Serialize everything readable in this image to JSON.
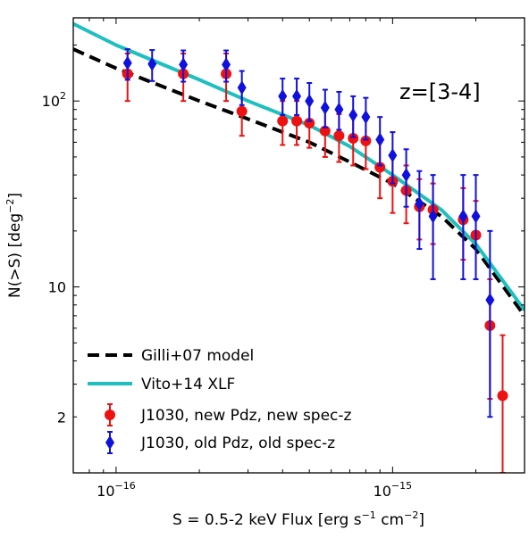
{
  "chart_data": {
    "type": "scatter",
    "xlabel_main": "S = 0.5-2 keV Flux [erg s",
    "xlabel_sup1": "−1",
    "xlabel_mid": " cm",
    "xlabel_sup2": "−2",
    "xlabel_end": "]",
    "ylabel_main": "N(>S) [deg",
    "ylabel_sup": "−2",
    "ylabel_end": "]",
    "x_scale": "log",
    "y_scale": "log",
    "xlim": [
      7e-17,
      3e-15
    ],
    "ylim": [
      1.0,
      280
    ],
    "x_ticks": [
      {
        "value": 1e-16,
        "base": "10",
        "exp": "−16"
      },
      {
        "value": 1e-15,
        "base": "10",
        "exp": "−15"
      }
    ],
    "y_ticks": [
      {
        "value": 100,
        "base": "10",
        "exp": "2"
      },
      {
        "value": 10,
        "label": "10"
      },
      {
        "value": 2,
        "label": "2"
      }
    ],
    "annotation": "z=[3-4]",
    "legend_position": "lower-left",
    "colors": {
      "gilli": "#000000",
      "vito": "#1fbfbf",
      "red": "#ee1111",
      "blue": "#1111dd"
    },
    "series": [
      {
        "name": "Gilli+07 model",
        "kind": "line-dashed",
        "color": "#000000",
        "x": [
          7e-17,
          1e-16,
          2e-16,
          3e-16,
          5e-16,
          7e-16,
          1e-15,
          1.5e-15,
          2e-15,
          3e-15
        ],
        "y": [
          190,
          150,
          100,
          80,
          60,
          47,
          36,
          24,
          16,
          7
        ]
      },
      {
        "name": "Vito+14 XLF",
        "kind": "line-solid",
        "color": "#1fbfbf",
        "x": [
          7e-17,
          1e-16,
          2e-16,
          3e-16,
          5e-16,
          7e-16,
          1e-15,
          1.5e-15,
          2e-15,
          3e-15
        ],
        "y": [
          260,
          200,
          130,
          100,
          74,
          57,
          40,
          26,
          17,
          7.5
        ]
      },
      {
        "name": "J1030, new Pdz, new spec-z",
        "kind": "errorbar-circle",
        "color": "#ee1111",
        "points": [
          {
            "x": 1.1e-16,
            "y": 140,
            "lo": 100,
            "hi": 180
          },
          {
            "x": 1.75e-16,
            "y": 140,
            "lo": 100,
            "hi": 180
          },
          {
            "x": 2.5e-16,
            "y": 140,
            "lo": 100,
            "hi": 180
          },
          {
            "x": 2.85e-16,
            "y": 88,
            "lo": 65,
            "hi": 115
          },
          {
            "x": 4e-16,
            "y": 78,
            "lo": 58,
            "hi": 100
          },
          {
            "x": 4.5e-16,
            "y": 78,
            "lo": 58,
            "hi": 100
          },
          {
            "x": 5e-16,
            "y": 76,
            "lo": 56,
            "hi": 98
          },
          {
            "x": 5.7e-16,
            "y": 69,
            "lo": 50,
            "hi": 90
          },
          {
            "x": 6.4e-16,
            "y": 65,
            "lo": 47,
            "hi": 85
          },
          {
            "x": 7.2e-16,
            "y": 63,
            "lo": 45,
            "hi": 83
          },
          {
            "x": 8e-16,
            "y": 61,
            "lo": 43,
            "hi": 80
          },
          {
            "x": 9e-16,
            "y": 44,
            "lo": 30,
            "hi": 60
          },
          {
            "x": 1e-15,
            "y": 37,
            "lo": 25,
            "hi": 50
          },
          {
            "x": 1.12e-15,
            "y": 33,
            "lo": 22,
            "hi": 45
          },
          {
            "x": 1.25e-15,
            "y": 27,
            "lo": 18,
            "hi": 38
          },
          {
            "x": 1.4e-15,
            "y": 26,
            "lo": 17,
            "hi": 36
          },
          {
            "x": 1.8e-15,
            "y": 23,
            "lo": 14,
            "hi": 34
          },
          {
            "x": 2e-15,
            "y": 19,
            "lo": 11,
            "hi": 29
          },
          {
            "x": 2.25e-15,
            "y": 6.2,
            "lo": 2.5,
            "hi": 11
          },
          {
            "x": 2.5e-15,
            "y": 2.6,
            "lo": 1.0,
            "hi": 5.5
          }
        ]
      },
      {
        "name": "J1030, old Pdz, old spec-z",
        "kind": "errorbar-diamond",
        "color": "#1111dd",
        "points": [
          {
            "x": 1.1e-16,
            "y": 160,
            "lo": 130,
            "hi": 190
          },
          {
            "x": 1.35e-16,
            "y": 158,
            "lo": 128,
            "hi": 188
          },
          {
            "x": 1.75e-16,
            "y": 157,
            "lo": 127,
            "hi": 187
          },
          {
            "x": 2.5e-16,
            "y": 157,
            "lo": 127,
            "hi": 187
          },
          {
            "x": 2.85e-16,
            "y": 118,
            "lo": 95,
            "hi": 145
          },
          {
            "x": 4e-16,
            "y": 106,
            "lo": 84,
            "hi": 132
          },
          {
            "x": 4.5e-16,
            "y": 106,
            "lo": 84,
            "hi": 132
          },
          {
            "x": 5e-16,
            "y": 100,
            "lo": 78,
            "hi": 125
          },
          {
            "x": 5.7e-16,
            "y": 92,
            "lo": 72,
            "hi": 115
          },
          {
            "x": 6.4e-16,
            "y": 90,
            "lo": 70,
            "hi": 112
          },
          {
            "x": 7.2e-16,
            "y": 84,
            "lo": 64,
            "hi": 106
          },
          {
            "x": 8e-16,
            "y": 82,
            "lo": 62,
            "hi": 104
          },
          {
            "x": 9e-16,
            "y": 62,
            "lo": 45,
            "hi": 82
          },
          {
            "x": 1e-15,
            "y": 51,
            "lo": 36,
            "hi": 68
          },
          {
            "x": 1.12e-15,
            "y": 40,
            "lo": 27,
            "hi": 55
          },
          {
            "x": 1.25e-15,
            "y": 28,
            "lo": 16,
            "hi": 42
          },
          {
            "x": 1.4e-15,
            "y": 24,
            "lo": 11,
            "hi": 40
          },
          {
            "x": 1.8e-15,
            "y": 24,
            "lo": 11,
            "hi": 40
          },
          {
            "x": 2e-15,
            "y": 24,
            "lo": 11,
            "hi": 40
          },
          {
            "x": 2.25e-15,
            "y": 8.5,
            "lo": 2.0,
            "hi": 20
          }
        ]
      }
    ]
  }
}
